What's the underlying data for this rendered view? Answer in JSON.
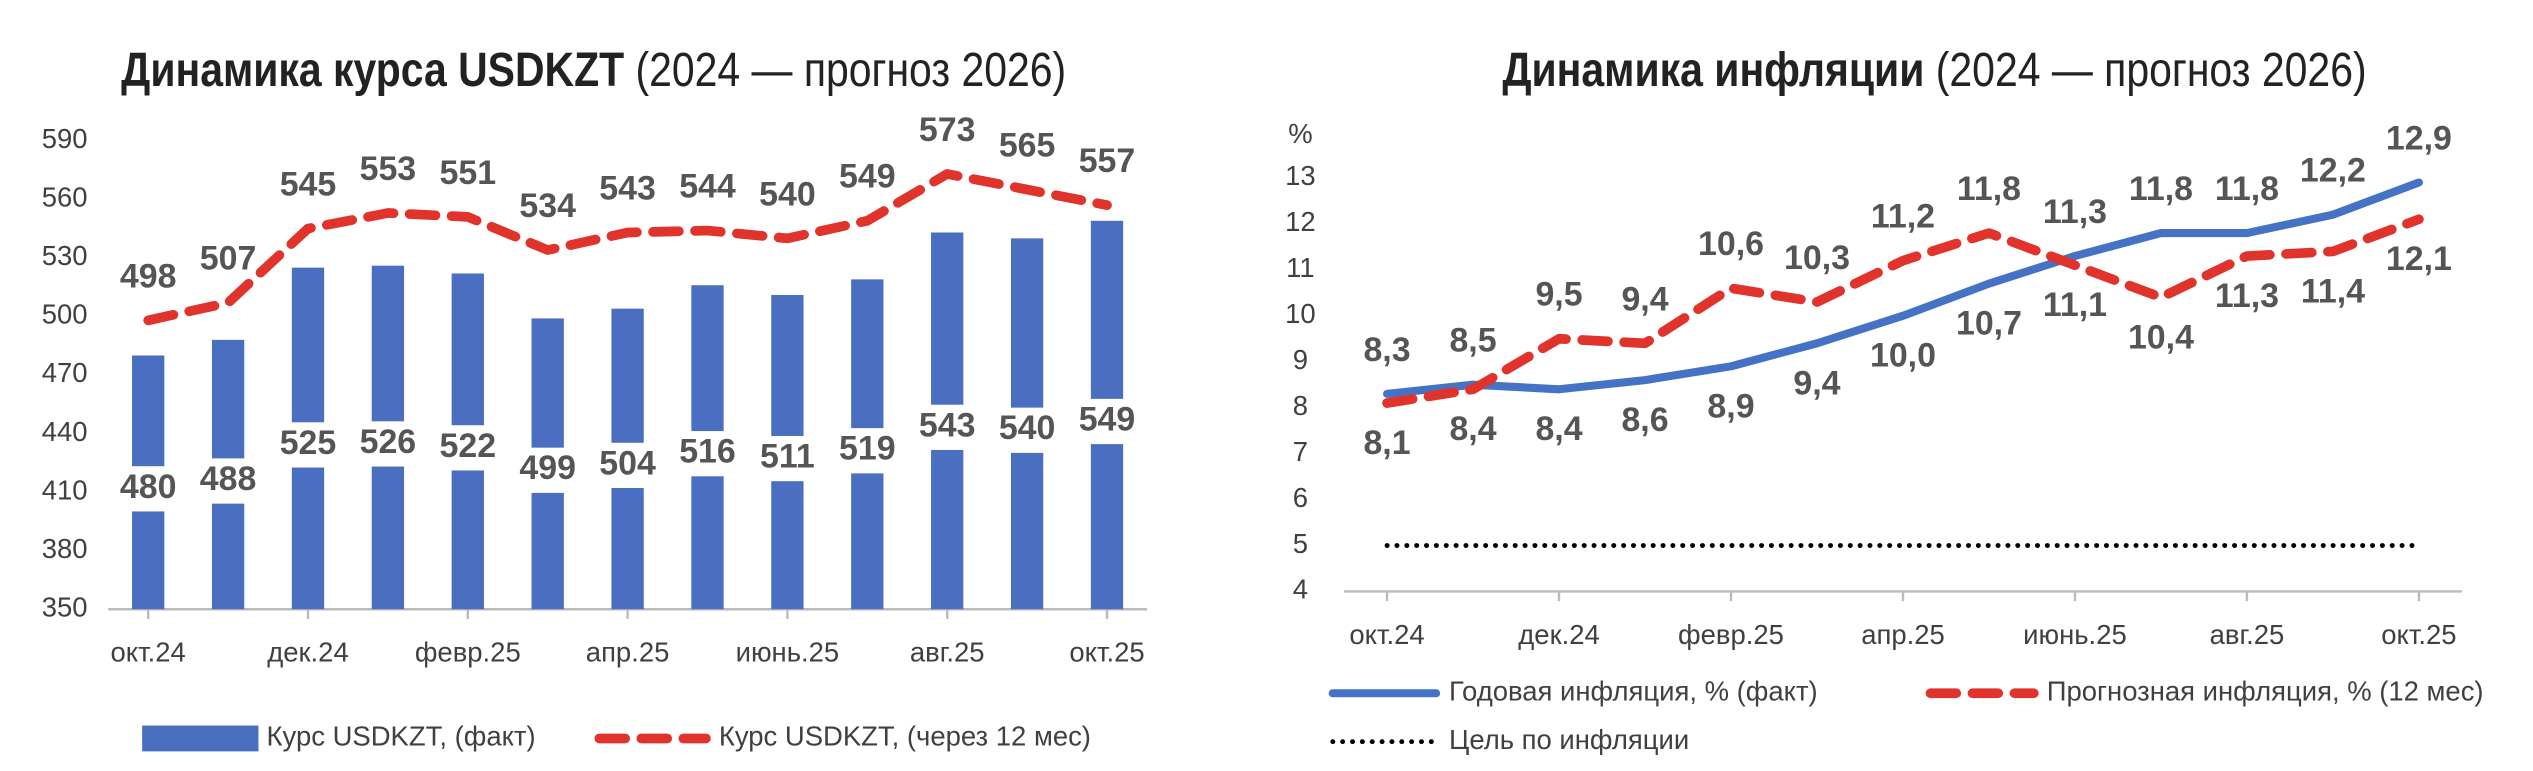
{
  "chart_data": [
    {
      "type": "bar_line",
      "title": "Динамика курса USDKZT",
      "subtitle": "(2024 — прогноз 2026)",
      "categories": [
        "окт.24",
        null,
        "дек.24",
        null,
        "февр.25",
        null,
        "апр.25",
        null,
        "июнь.25",
        null,
        "авг.25",
        null,
        "окт.25"
      ],
      "series": [
        {
          "name": "Курс USDKZT, (факт)",
          "type": "bar",
          "color": "#4a6fc0",
          "values": [
            480,
            488,
            525,
            526,
            522,
            499,
            504,
            516,
            511,
            519,
            543,
            540,
            549
          ]
        },
        {
          "name": "Курс USDKZT, (через 12 мес)",
          "type": "line",
          "style": "dashed",
          "color": "#e0332b",
          "values": [
            498,
            507,
            545,
            553,
            551,
            534,
            543,
            544,
            540,
            549,
            573,
            565,
            557
          ]
        }
      ],
      "ylim": [
        350,
        590
      ],
      "yticks": [
        350,
        380,
        410,
        440,
        470,
        500,
        530,
        560,
        590
      ],
      "grid": false,
      "legend": "bottom"
    },
    {
      "type": "line",
      "title": "Динамика инфляции",
      "subtitle": "(2024 — прогноз 2026)",
      "y_label": "%",
      "categories": [
        "окт.24",
        null,
        "дек.24",
        null,
        "февр.25",
        null,
        "апр.25",
        null,
        "июнь.25",
        null,
        "авг.25",
        null,
        "окт.25"
      ],
      "series": [
        {
          "name": "Годовая инфляция, % (факт)",
          "style": "solid",
          "color": "#4472c4",
          "values": [
            8.3,
            8.5,
            8.4,
            8.6,
            8.9,
            9.4,
            10.0,
            10.7,
            11.3,
            11.8,
            11.8,
            12.2,
            12.9
          ],
          "value_labels": [
            "8,3",
            "8,5",
            "8,4",
            "8,6",
            "8,9",
            "9,4",
            "10,0",
            "10,7",
            "11,3",
            "11,8",
            "11,8",
            "12,2",
            "12,9"
          ]
        },
        {
          "name": "Прогнозная инфляция, % (12 мес)",
          "style": "dashed",
          "color": "#e0332b",
          "values": [
            8.1,
            8.4,
            9.5,
            9.4,
            10.6,
            10.3,
            11.2,
            11.8,
            11.1,
            10.4,
            11.3,
            11.4,
            12.1
          ],
          "value_labels": [
            "8,1",
            "8,4",
            "9,5",
            "9,4",
            "10,6",
            "10,3",
            "11,2",
            "11,8",
            "11,1",
            "10,4",
            "11,3",
            "11,4",
            "12,1"
          ]
        },
        {
          "name": "Цель по инфляции",
          "style": "dotted",
          "color": "#000000",
          "values": [
            5,
            5,
            5,
            5,
            5,
            5,
            5,
            5,
            5,
            5,
            5,
            5,
            5
          ]
        }
      ],
      "ylim": [
        4,
        13
      ],
      "yticks": [
        4,
        5,
        6,
        7,
        8,
        9,
        10,
        11,
        12,
        13
      ],
      "grid": false,
      "legend": "bottom"
    }
  ]
}
